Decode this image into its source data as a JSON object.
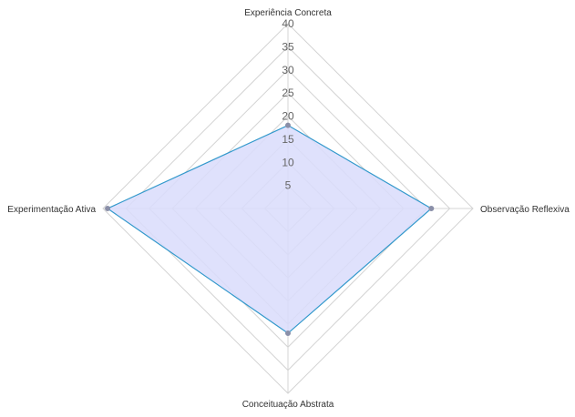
{
  "chart_data": {
    "type": "radar",
    "axes": [
      "Experiência Concreta",
      "Observação Reflexiva",
      "Conceituação Abstrata",
      "Experimentação Ativa"
    ],
    "r_ticks": [
      5,
      10,
      15,
      20,
      25,
      30,
      35,
      40
    ],
    "rlim": [
      0,
      40
    ],
    "series": [
      {
        "values": [
          18,
          31,
          27,
          39
        ]
      }
    ],
    "colors": {
      "line": "#3399cc",
      "fill": "#d9dcfb",
      "grid": "#d4d4d4",
      "point": "#8a8fa8"
    },
    "legend": "none"
  }
}
